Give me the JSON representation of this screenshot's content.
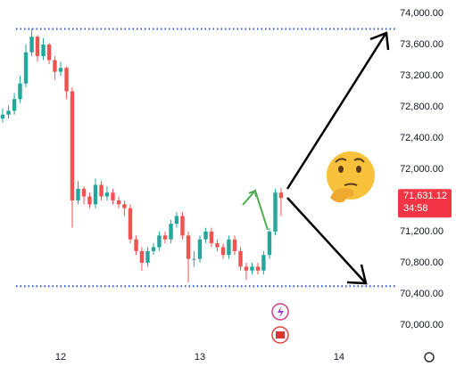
{
  "chart_data": {
    "type": "candlestick",
    "x": [
      11.583,
      11.625,
      11.667,
      11.708,
      11.75,
      11.792,
      11.833,
      11.875,
      11.917,
      11.958,
      12,
      12.042,
      12.083,
      12.125,
      12.167,
      12.208,
      12.25,
      12.292,
      12.333,
      12.375,
      12.417,
      12.458,
      12.5,
      12.542,
      12.583,
      12.625,
      12.667,
      12.708,
      12.75,
      12.792,
      12.833,
      12.875,
      12.917,
      12.958,
      13,
      13.042,
      13.083,
      13.125,
      13.167,
      13.208,
      13.25,
      13.292,
      13.333,
      13.375,
      13.417,
      13.458,
      13.5,
      13.542,
      13.583
    ],
    "open": [
      72650,
      72700,
      72750,
      72900,
      73100,
      73500,
      73700,
      73450,
      73600,
      73400,
      73250,
      73300,
      73000,
      71600,
      71750,
      71650,
      71550,
      71800,
      71650,
      71700,
      71600,
      71550,
      71500,
      71100,
      70950,
      70800,
      70950,
      71000,
      71150,
      71100,
      71300,
      71400,
      71150,
      70850,
      70850,
      71100,
      71200,
      71050,
      71000,
      70900,
      71100,
      70950,
      70750,
      70700,
      70750,
      70700,
      70900,
      71200,
      71700
    ],
    "high": [
      72780,
      72820,
      72980,
      73200,
      73600,
      73800,
      73720,
      73680,
      73620,
      73450,
      73380,
      73320,
      73050,
      71850,
      71780,
      71700,
      71880,
      71850,
      71780,
      71750,
      71650,
      71600,
      71550,
      71150,
      71000,
      71000,
      71050,
      71200,
      71200,
      71350,
      71450,
      71450,
      71200,
      70950,
      71150,
      71250,
      71250,
      71100,
      71050,
      71150,
      71150,
      71000,
      70800,
      70800,
      70800,
      70950,
      71250,
      71750,
      71760
    ],
    "low": [
      72600,
      72650,
      72700,
      72850,
      73050,
      73450,
      73380,
      73400,
      73350,
      73150,
      73200,
      72900,
      71250,
      71550,
      71550,
      71500,
      71500,
      71600,
      71600,
      71550,
      71500,
      71400,
      71050,
      70900,
      70700,
      70750,
      70900,
      70950,
      71050,
      71050,
      71250,
      71100,
      70550,
      70750,
      70800,
      71050,
      71000,
      70950,
      70850,
      70850,
      70900,
      70700,
      70580,
      70650,
      70650,
      70650,
      70850,
      71150,
      71400
    ],
    "close": [
      72700,
      72750,
      72900,
      73100,
      73500,
      73700,
      73450,
      73600,
      73400,
      73250,
      73300,
      73000,
      71600,
      71750,
      71650,
      71550,
      71800,
      71650,
      71700,
      71600,
      71550,
      71500,
      71100,
      70950,
      70800,
      70950,
      71000,
      71150,
      71100,
      71300,
      71400,
      71150,
      70850,
      70850,
      71100,
      71200,
      71050,
      71000,
      70900,
      71100,
      70950,
      70750,
      70700,
      70750,
      70700,
      70900,
      71200,
      71700,
      71631.12
    ],
    "up_color": "#26a69a",
    "down_color": "#ef5350",
    "xlim": [
      11.564,
      14.385
    ],
    "xticks": [
      12,
      13,
      14
    ],
    "ylim": [
      69737,
      74171
    ],
    "yticks": [
      {
        "value": 70000,
        "label": "70,000.00"
      },
      {
        "value": 70400,
        "label": "70,400.00"
      },
      {
        "value": 70800,
        "label": "70,800.00"
      },
      {
        "value": 71200,
        "label": "71,200.00"
      },
      {
        "value": 72000,
        "label": "72,000.00"
      },
      {
        "value": 72400,
        "label": "72,400.00"
      },
      {
        "value": 72800,
        "label": "72,800.00"
      },
      {
        "value": 73200,
        "label": "73,200.00"
      },
      {
        "value": 73600,
        "label": "73,600.00"
      },
      {
        "value": 74000,
        "label": "74,000.00"
      }
    ],
    "levels": [
      73800,
      70500
    ],
    "level_color": "#2a4fd6",
    "last_price_label": "71,631.12",
    "countdown": "34:58",
    "tag_color": "#f23645",
    "grid": false
  }
}
